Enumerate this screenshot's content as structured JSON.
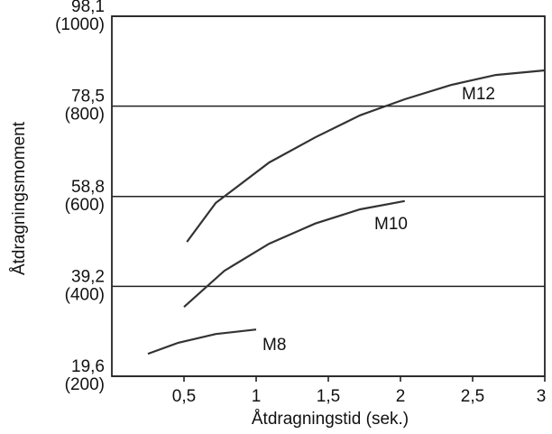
{
  "chart_data": {
    "type": "line",
    "xlabel": "Åtdragningstid (sek.)",
    "ylabel": "Åtdragningsmoment",
    "xlim": [
      0,
      3
    ],
    "ylim": [
      19.6,
      98.1
    ],
    "xticks": [
      {
        "value": 0.5,
        "label": "0,5"
      },
      1,
      {
        "value": 1.5,
        "label": "1,5"
      },
      2,
      {
        "value": 2.5,
        "label": "2,5"
      },
      3
    ],
    "yticks": [
      {
        "value": 19.6,
        "label": "19,6\n(200)"
      },
      {
        "value": 39.2,
        "label": "39,2\n(400)"
      },
      {
        "value": 58.8,
        "label": "58,8\n(600)"
      },
      {
        "value": 78.5,
        "label": "78,5\n(800)"
      },
      {
        "value": 98.1,
        "label": "98,1\n(1000)"
      }
    ],
    "grid": true,
    "series": [
      {
        "name": "M8",
        "color": "#333333",
        "x": [
          0.25,
          0.46,
          0.72,
          1.0
        ],
        "values": [
          24.5,
          26.9,
          28.8,
          29.8
        ]
      },
      {
        "name": "M10",
        "color": "#333333",
        "x": [
          0.5,
          0.78,
          1.09,
          1.41,
          1.72,
          2.03
        ],
        "values": [
          34.7,
          42.6,
          48.5,
          52.9,
          56.0,
          57.8
        ]
      },
      {
        "name": "M12",
        "color": "#333333",
        "x": [
          0.52,
          0.72,
          1.09,
          1.41,
          1.72,
          2.03,
          2.35,
          2.66,
          3.0
        ],
        "values": [
          48.9,
          57.4,
          66.2,
          71.7,
          76.5,
          80.0,
          83.1,
          85.3,
          86.3
        ]
      }
    ]
  }
}
